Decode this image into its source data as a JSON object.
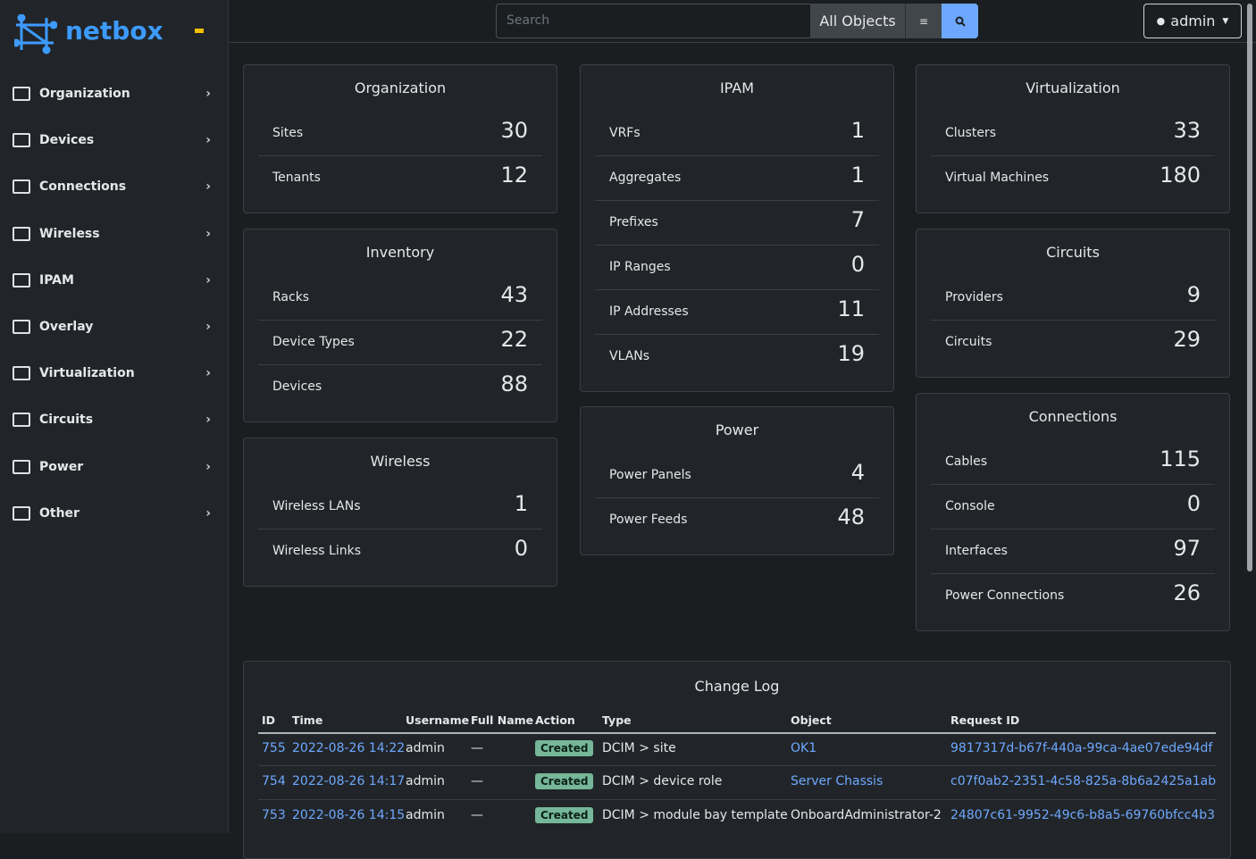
{
  "sidebar": {
    "brand": "netbox",
    "menu": [
      "Organization",
      "Devices",
      "Connections",
      "Wireless",
      "IPAM",
      "Overlay",
      "Virtualization",
      "Circuits",
      "Power",
      "Other"
    ]
  },
  "search": {
    "placeholder": "Search",
    "scope": "All Objects"
  },
  "user": "admin",
  "cards": [
    {
      "title": "Organization",
      "items": [
        {
          "label": "Sites",
          "count": 30
        },
        {
          "label": "Tenants",
          "count": 12
        }
      ]
    },
    {
      "title": "Inventory",
      "items": [
        {
          "label": "Racks",
          "count": 43
        },
        {
          "label": "Device Types",
          "count": 22
        },
        {
          "label": "Devices",
          "count": 88
        }
      ]
    },
    {
      "title": "Wireless",
      "items": [
        {
          "label": "Wireless LANs",
          "count": 1
        },
        {
          "label": "Wireless Links",
          "count": 0
        }
      ]
    },
    {
      "title": "IPAM",
      "items": [
        {
          "label": "VRFs",
          "count": 1
        },
        {
          "label": "Aggregates",
          "count": 1
        },
        {
          "label": "Prefixes",
          "count": 7
        },
        {
          "label": "IP Ranges",
          "count": 0
        },
        {
          "label": "IP Addresses",
          "count": 11
        },
        {
          "label": "VLANs",
          "count": 19
        }
      ]
    },
    {
      "title": "Power",
      "items": [
        {
          "label": "Power Panels",
          "count": 4
        },
        {
          "label": "Power Feeds",
          "count": 48
        }
      ]
    },
    {
      "title": "Virtualization",
      "items": [
        {
          "label": "Clusters",
          "count": 33
        },
        {
          "label": "Virtual Machines",
          "count": 180
        }
      ]
    },
    {
      "title": "Circuits",
      "items": [
        {
          "label": "Providers",
          "count": 9
        },
        {
          "label": "Circuits",
          "count": 29
        }
      ]
    },
    {
      "title": "Connections",
      "items": [
        {
          "label": "Cables",
          "count": 115
        },
        {
          "label": "Console",
          "count": 0
        },
        {
          "label": "Interfaces",
          "count": 97
        },
        {
          "label": "Power Connections",
          "count": 26
        }
      ]
    }
  ],
  "changelog": {
    "title": "Change Log",
    "columns": [
      "ID",
      "Time",
      "Username",
      "Full Name",
      "Action",
      "Type",
      "Object",
      "Request ID"
    ],
    "rows": [
      [
        755,
        "2022-08-26 14:22",
        "admin",
        "—",
        "Created",
        "DCIM > site",
        "OK1",
        "9817317d-b67f-440a-99ca-4ae07ede94df"
      ],
      [
        754,
        "2022-08-26 14:17",
        "admin",
        "—",
        "Created",
        "DCIM > device role",
        "Server Chassis",
        "c07f0ab2-2351-4c58-825a-8b6a2425a1ab"
      ],
      [
        753,
        "2022-08-26 14:15",
        "admin",
        "—",
        "Created",
        "DCIM > module bay template",
        "OnboardAdministrator-2",
        "24807c61-9952-49c6-b8a5-69760bfcc4b3"
      ]
    ]
  }
}
